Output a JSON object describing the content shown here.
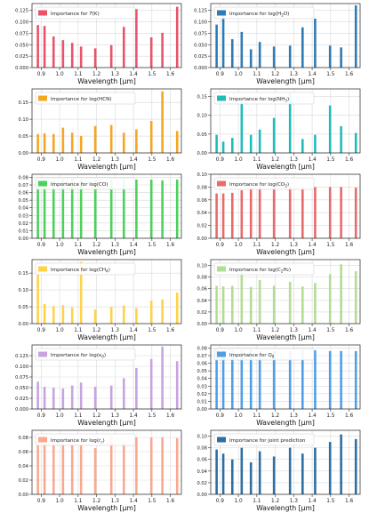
{
  "figure": {
    "x_ticks": [
      0.9,
      1.0,
      1.1,
      1.2,
      1.3,
      1.4,
      1.5,
      1.6
    ],
    "x_tick_labels": [
      "0.9",
      "1.0",
      "1.1",
      "1.2",
      "1.3",
      "1.4",
      "1.5",
      "1.6"
    ],
    "xlim": [
      0.85,
      1.66
    ],
    "xlabel": "Wavelength [μm]",
    "legend_position": "top"
  },
  "chart_data": [
    {
      "type": "bar",
      "legend": {
        "prefix": "Importance for ",
        "main": "T",
        "sub": "",
        "suffix": "(K)",
        "italic": true
      },
      "color": "#e8546b",
      "x": [
        0.882,
        0.918,
        0.967,
        1.018,
        1.068,
        1.116,
        1.193,
        1.28,
        1.348,
        1.416,
        1.497,
        1.557,
        1.637
      ],
      "values": [
        0.093,
        0.091,
        0.068,
        0.06,
        0.054,
        0.046,
        0.042,
        0.049,
        0.089,
        0.128,
        0.066,
        0.076,
        0.133
      ],
      "ylim": [
        0,
        0.14
      ],
      "yticks": [
        0,
        0.025,
        0.05,
        0.075,
        0.1,
        0.125
      ],
      "ytick_labels": [
        "0.000",
        "0.025",
        "0.050",
        "0.075",
        "0.100",
        "0.125"
      ]
    },
    {
      "type": "bar",
      "legend": {
        "prefix": "Importance for log(",
        "main": "H",
        "sub": "2",
        "suffix": "O)",
        "italic": false
      },
      "color": "#2f7bb5",
      "x": [
        0.882,
        0.918,
        0.967,
        1.018,
        1.068,
        1.116,
        1.193,
        1.28,
        1.348,
        1.416,
        1.497,
        1.557,
        1.637
      ],
      "values": [
        0.094,
        0.125,
        0.062,
        0.078,
        0.04,
        0.056,
        0.046,
        0.048,
        0.088,
        0.107,
        0.048,
        0.044,
        0.136
      ],
      "ylim": [
        0,
        0.14
      ],
      "yticks": [
        0,
        0.025,
        0.05,
        0.075,
        0.1,
        0.125
      ],
      "ytick_labels": [
        "0.000",
        "0.025",
        "0.050",
        "0.075",
        "0.100",
        "0.125"
      ]
    },
    {
      "type": "bar",
      "legend": {
        "prefix": "Importance for log(HCN)",
        "main": "",
        "sub": "",
        "suffix": "",
        "italic": false
      },
      "color": "#f5a623",
      "x": [
        0.882,
        0.918,
        0.967,
        1.018,
        1.068,
        1.116,
        1.193,
        1.28,
        1.348,
        1.416,
        1.497,
        1.557,
        1.637
      ],
      "values": [
        0.056,
        0.058,
        0.056,
        0.075,
        0.06,
        0.05,
        0.08,
        0.083,
        0.06,
        0.07,
        0.095,
        0.183,
        0.065
      ],
      "ylim": [
        0,
        0.19
      ],
      "yticks": [
        0,
        0.05,
        0.1,
        0.15
      ],
      "ytick_labels": [
        "0.00",
        "0.05",
        "0.10",
        "0.15"
      ]
    },
    {
      "type": "bar",
      "legend": {
        "prefix": "Importance for log(",
        "main": "NH",
        "sub": "3",
        "suffix": ")",
        "italic": false
      },
      "color": "#1fbcbc",
      "x": [
        0.882,
        0.918,
        0.967,
        1.018,
        1.068,
        1.116,
        1.193,
        1.28,
        1.348,
        1.416,
        1.497,
        1.557,
        1.637
      ],
      "values": [
        0.048,
        0.03,
        0.04,
        0.137,
        0.048,
        0.062,
        0.093,
        0.16,
        0.037,
        0.048,
        0.126,
        0.071,
        0.053
      ],
      "ylim": [
        0,
        0.17
      ],
      "yticks": [
        0,
        0.05,
        0.1,
        0.15
      ],
      "ytick_labels": [
        "0.00",
        "0.05",
        "0.10",
        "0.15"
      ]
    },
    {
      "type": "bar",
      "legend": {
        "prefix": "Importance for log(CO)",
        "main": "",
        "sub": "",
        "suffix": "",
        "italic": false
      },
      "color": "#4cd15c",
      "x": [
        0.882,
        0.918,
        0.967,
        1.018,
        1.068,
        1.116,
        1.193,
        1.28,
        1.348,
        1.416,
        1.497,
        1.557,
        1.637
      ],
      "values": [
        0.077,
        0.077,
        0.077,
        0.077,
        0.078,
        0.077,
        0.077,
        0.077,
        0.077,
        0.077,
        0.077,
        0.076,
        0.077
      ],
      "ylim": [
        0,
        0.084
      ],
      "yticks": [
        0,
        0.01,
        0.02,
        0.03,
        0.04,
        0.05,
        0.06,
        0.07,
        0.08
      ],
      "ytick_labels": [
        "0.00",
        "0.01",
        "0.02",
        "0.03",
        "0.04",
        "0.05",
        "0.06",
        "0.07",
        "0.08"
      ]
    },
    {
      "type": "bar",
      "legend": {
        "prefix": "Importance for log(",
        "main": "CO",
        "sub": "2",
        "suffix": ")",
        "italic": false
      },
      "color": "#ea6a6a",
      "x": [
        0.882,
        0.918,
        0.967,
        1.018,
        1.068,
        1.116,
        1.193,
        1.28,
        1.348,
        1.416,
        1.497,
        1.557,
        1.637
      ],
      "values": [
        0.07,
        0.07,
        0.071,
        0.075,
        0.079,
        0.08,
        0.08,
        0.081,
        0.08,
        0.08,
        0.08,
        0.08,
        0.079
      ],
      "ylim": [
        0,
        0.1
      ],
      "yticks": [
        0,
        0.02,
        0.04,
        0.06,
        0.08,
        0.1
      ],
      "ytick_labels": [
        "0.00",
        "0.02",
        "0.04",
        "0.06",
        "0.08",
        "0.10"
      ]
    },
    {
      "type": "bar",
      "legend": {
        "prefix": "Importance for log(",
        "main": "CH",
        "sub": "4",
        "suffix": ")",
        "italic": false
      },
      "color": "#ffd24a",
      "x": [
        0.882,
        0.918,
        0.967,
        1.018,
        1.068,
        1.116,
        1.193,
        1.28,
        1.348,
        1.416,
        1.497,
        1.557,
        1.637
      ],
      "values": [
        0.162,
        0.058,
        0.052,
        0.055,
        0.048,
        0.183,
        0.042,
        0.05,
        0.054,
        0.046,
        0.068,
        0.072,
        0.092
      ],
      "ylim": [
        0,
        0.19
      ],
      "yticks": [
        0,
        0.05,
        0.1,
        0.15
      ],
      "ytick_labels": [
        "0.00",
        "0.05",
        "0.10",
        "0.15"
      ]
    },
    {
      "type": "bar",
      "legend": {
        "prefix": "Importance for log(",
        "main": "C",
        "sub": "2",
        "suffix": "H₂)",
        "italic": false
      },
      "color": "#b4dc92",
      "x": [
        0.882,
        0.918,
        0.967,
        1.018,
        1.068,
        1.116,
        1.193,
        1.28,
        1.348,
        1.416,
        1.497,
        1.557,
        1.637
      ],
      "values": [
        0.065,
        0.064,
        0.065,
        0.09,
        0.063,
        0.075,
        0.065,
        0.072,
        0.064,
        0.07,
        0.085,
        0.102,
        0.09
      ],
      "ylim": [
        0,
        0.11
      ],
      "yticks": [
        0,
        0.02,
        0.04,
        0.06,
        0.08,
        0.1
      ],
      "ytick_labels": [
        "0.00",
        "0.02",
        "0.04",
        "0.06",
        "0.08",
        "0.10"
      ]
    },
    {
      "type": "bar",
      "legend": {
        "prefix": "Importance for log(",
        "main": "κ",
        "sub": "0",
        "suffix": ")",
        "italic": true
      },
      "color": "#c7a4e0",
      "x": [
        0.882,
        0.918,
        0.967,
        1.018,
        1.068,
        1.116,
        1.193,
        1.28,
        1.348,
        1.416,
        1.497,
        1.557,
        1.637
      ],
      "values": [
        0.064,
        0.052,
        0.05,
        0.048,
        0.055,
        0.062,
        0.052,
        0.055,
        0.072,
        0.096,
        0.117,
        0.146,
        0.112
      ],
      "ylim": [
        0,
        0.15
      ],
      "yticks": [
        0,
        0.025,
        0.05,
        0.075,
        0.1,
        0.125
      ],
      "ytick_labels": [
        "0.000",
        "0.025",
        "0.050",
        "0.075",
        "0.100",
        "0.125"
      ]
    },
    {
      "type": "bar",
      "legend": {
        "prefix": "Importance for ",
        "main": "Q",
        "sub": "0",
        "suffix": "",
        "italic": false
      },
      "color": "#4f9fe8",
      "x": [
        0.882,
        0.918,
        0.967,
        1.018,
        1.068,
        1.116,
        1.193,
        1.28,
        1.348,
        1.416,
        1.497,
        1.557,
        1.637
      ],
      "values": [
        0.078,
        0.077,
        0.077,
        0.077,
        0.077,
        0.076,
        0.076,
        0.076,
        0.077,
        0.077,
        0.076,
        0.076,
        0.076
      ],
      "ylim": [
        0,
        0.084
      ],
      "yticks": [
        0,
        0.01,
        0.02,
        0.03,
        0.04,
        0.05,
        0.06,
        0.07,
        0.08
      ],
      "ytick_labels": [
        "0.00",
        "0.01",
        "0.02",
        "0.03",
        "0.04",
        "0.05",
        "0.06",
        "0.07",
        "0.08"
      ]
    },
    {
      "type": "bar",
      "legend": {
        "prefix": "Importance for log(",
        "main": "r",
        "sub": "c",
        "suffix": ")",
        "italic": true
      },
      "color": "#f8a98f",
      "x": [
        0.882,
        0.918,
        0.967,
        1.018,
        1.068,
        1.116,
        1.193,
        1.28,
        1.348,
        1.416,
        1.497,
        1.557,
        1.637
      ],
      "values": [
        0.075,
        0.082,
        0.072,
        0.072,
        0.071,
        0.07,
        0.065,
        0.082,
        0.074,
        0.08,
        0.08,
        0.08,
        0.079
      ],
      "ylim": [
        0,
        0.09
      ],
      "yticks": [
        0,
        0.02,
        0.04,
        0.06,
        0.08
      ],
      "ytick_labels": [
        "0.00",
        "0.02",
        "0.04",
        "0.06",
        "0.08"
      ]
    },
    {
      "type": "bar",
      "legend": {
        "prefix": "Importance for joint prediction",
        "main": "",
        "sub": "",
        "suffix": "",
        "italic": false
      },
      "color": "#2d6fa3",
      "x": [
        0.882,
        0.918,
        0.967,
        1.018,
        1.068,
        1.116,
        1.193,
        1.28,
        1.348,
        1.416,
        1.497,
        1.557,
        1.637
      ],
      "values": [
        0.077,
        0.07,
        0.06,
        0.08,
        0.055,
        0.074,
        0.065,
        0.08,
        0.07,
        0.08,
        0.09,
        0.103,
        0.095
      ],
      "ylim": [
        0,
        0.11
      ],
      "yticks": [
        0,
        0.02,
        0.04,
        0.06,
        0.08,
        0.1
      ],
      "ytick_labels": [
        "0.00",
        "0.02",
        "0.04",
        "0.06",
        "0.08",
        "0.10"
      ]
    }
  ]
}
